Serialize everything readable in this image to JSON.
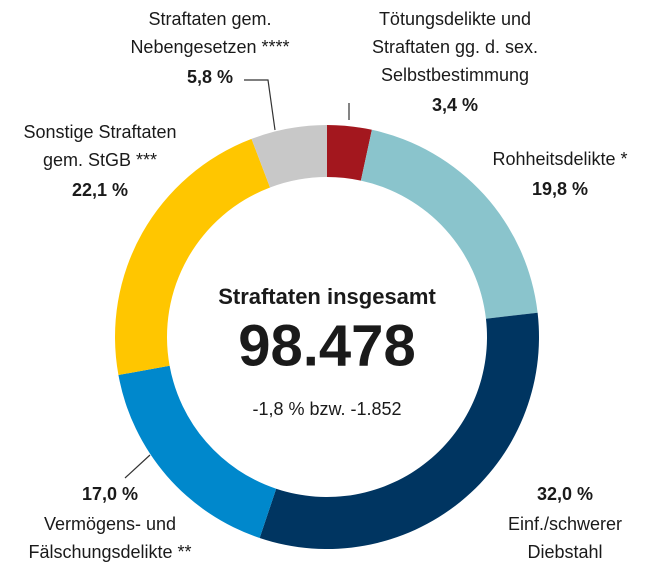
{
  "chart_data": {
    "type": "donut",
    "categories": [
      [
        "Tötungsdelikte und",
        "Straftaten gg. d. sex.",
        "Selbstbestimmung"
      ],
      [
        "Rohheitsdelikte *"
      ],
      [
        "Einf./schwerer",
        "Diebstahl"
      ],
      [
        "Vermögens- und",
        "Fälschungsdelikte **"
      ],
      [
        "Sonstige Straftaten",
        "gem. StGB ***"
      ],
      [
        "Straftaten gem.",
        "Nebengesetzen ****"
      ]
    ],
    "values": [
      3.4,
      19.8,
      32.0,
      17.0,
      22.1,
      5.8
    ],
    "value_labels": [
      "3,4 %",
      "19,8 %",
      "32,0 %",
      "17,0 %",
      "22,1 %",
      "5,8 %"
    ],
    "colors": [
      "#a3171e",
      "#8ac4cc",
      "#003561",
      "#0088cc",
      "#ffc600",
      "#c8c8c8"
    ],
    "center_title": "Straftaten insgesamt",
    "center_value": "98.478",
    "center_subtitle": "-1,8 % bzw. -1.852"
  }
}
